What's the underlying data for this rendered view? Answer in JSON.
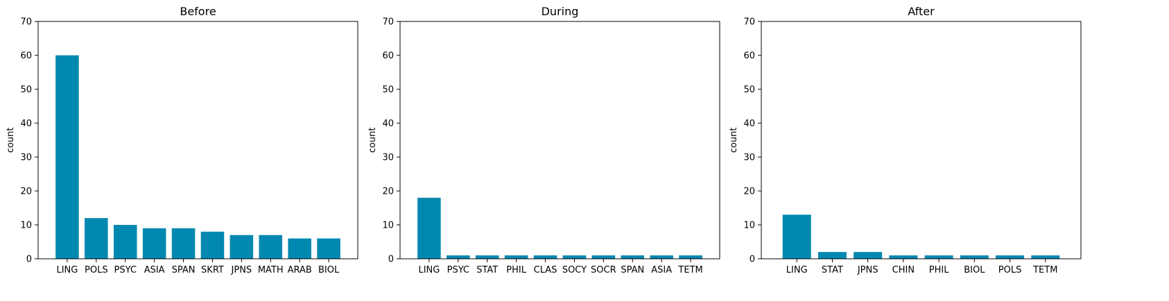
{
  "chart_data": [
    {
      "type": "bar",
      "title": "Before",
      "xlabel": "",
      "ylabel": "count",
      "ylim": [
        0,
        70
      ],
      "yticks": [
        0,
        10,
        20,
        30,
        40,
        50,
        60,
        70
      ],
      "categories": [
        "LING",
        "POLS",
        "PSYC",
        "ASIA",
        "SPAN",
        "SKRT",
        "JPNS",
        "MATH",
        "ARAB",
        "BIOL"
      ],
      "values": [
        60,
        12,
        10,
        9,
        9,
        8,
        7,
        7,
        6,
        6
      ],
      "color": "#0088b0"
    },
    {
      "type": "bar",
      "title": "During",
      "xlabel": "",
      "ylabel": "count",
      "ylim": [
        0,
        70
      ],
      "yticks": [
        0,
        10,
        20,
        30,
        40,
        50,
        60,
        70
      ],
      "categories": [
        "LING",
        "PSYC",
        "STAT",
        "PHIL",
        "CLAS",
        "SOCY",
        "SOCR",
        "SPAN",
        "ASIA",
        "TETM"
      ],
      "values": [
        18,
        1,
        1,
        1,
        1,
        1,
        1,
        1,
        1,
        1
      ],
      "color": "#0088b0"
    },
    {
      "type": "bar",
      "title": "After",
      "xlabel": "",
      "ylabel": "count",
      "ylim": [
        0,
        70
      ],
      "yticks": [
        0,
        10,
        20,
        30,
        40,
        50,
        60,
        70
      ],
      "categories": [
        "LING",
        "STAT",
        "JPNS",
        "CHIN",
        "PHIL",
        "BIOL",
        "POLS",
        "TETM"
      ],
      "values": [
        13,
        2,
        2,
        1,
        1,
        1,
        1,
        1
      ],
      "color": "#0088b0"
    }
  ]
}
